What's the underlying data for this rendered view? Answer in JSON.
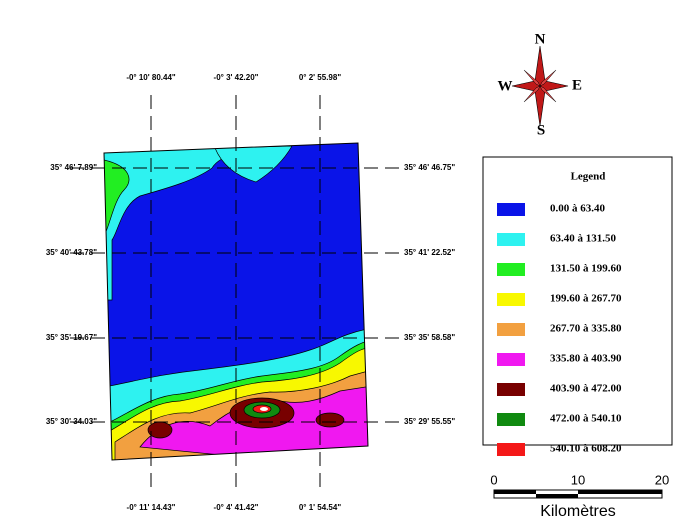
{
  "compass": {
    "north": "N",
    "south": "S",
    "east": "E",
    "west": "W"
  },
  "top_labels": [
    "-0° 10' 80.44\"",
    "-0° 3' 42.20\"",
    "0° 2' 55.98\""
  ],
  "bottom_labels": [
    "-0° 11' 14.43\"",
    "-0° 4' 41.42\"",
    "0° 1' 54.54\""
  ],
  "left_labels": [
    "35° 46' 7.89\"",
    "35° 40' 43.78\"",
    "35° 35' 19.67\"",
    "35° 30' 34.03\""
  ],
  "right_labels": [
    "35° 46' 46.75\"",
    "35° 41' 22.52\"",
    "35° 35' 58.58\"",
    "35° 29' 55.55\""
  ],
  "legend": {
    "title": "Legend",
    "items": [
      {
        "label": "0.00 à 63.40",
        "color": "#0a14e8"
      },
      {
        "label": "63.40 à 131.50",
        "color": "#2ef2f0"
      },
      {
        "label": "131.50 à 199.60",
        "color": "#22ee22"
      },
      {
        "label": "199.60 à 267.70",
        "color": "#f8f800"
      },
      {
        "label": "267.70 à 335.80",
        "color": "#f2a040"
      },
      {
        "label": "335.80 à 403.90",
        "color": "#f018f0"
      },
      {
        "label": "403.90 à 472.00",
        "color": "#780000"
      },
      {
        "label": "472.00 à 540.10",
        "color": "#108a10"
      },
      {
        "label": "540.10 à 608.20",
        "color": "#f41818"
      }
    ]
  },
  "scale": {
    "ticks": [
      "0",
      "10",
      "20"
    ],
    "unit": "Kilomètres"
  }
}
